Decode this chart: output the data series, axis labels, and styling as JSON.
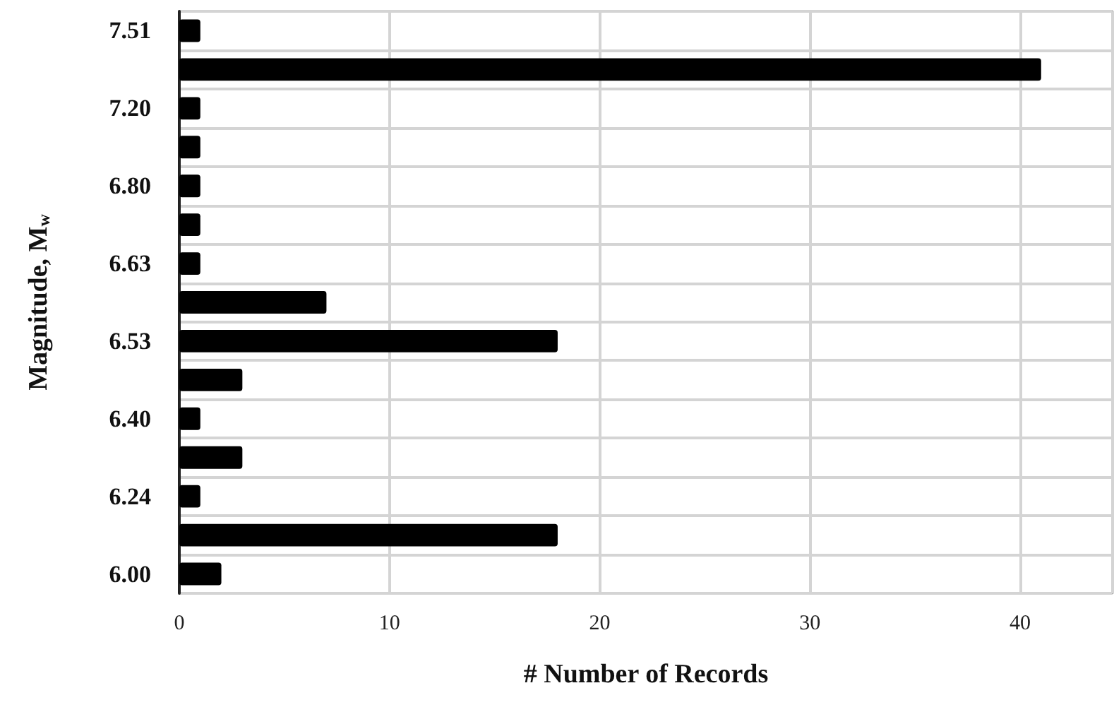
{
  "chart_data": {
    "type": "bar",
    "orientation": "horizontal",
    "xlabel": "# Number of Records",
    "ylabel": "Magnitude, M$_{w}$",
    "categories": [
      "7.51",
      null,
      "7.20",
      null,
      "6.80",
      null,
      "6.63",
      null,
      "6.53",
      null,
      "6.40",
      null,
      "6.24",
      null,
      "6.00"
    ],
    "values": [
      1,
      41,
      1,
      1,
      1,
      1,
      1,
      7,
      18,
      3,
      1,
      3,
      1,
      18,
      2
    ],
    "color": "#000000",
    "xlim": [
      0,
      44.4
    ],
    "xticks": [
      0,
      10,
      20,
      30,
      40
    ],
    "grid": true
  }
}
